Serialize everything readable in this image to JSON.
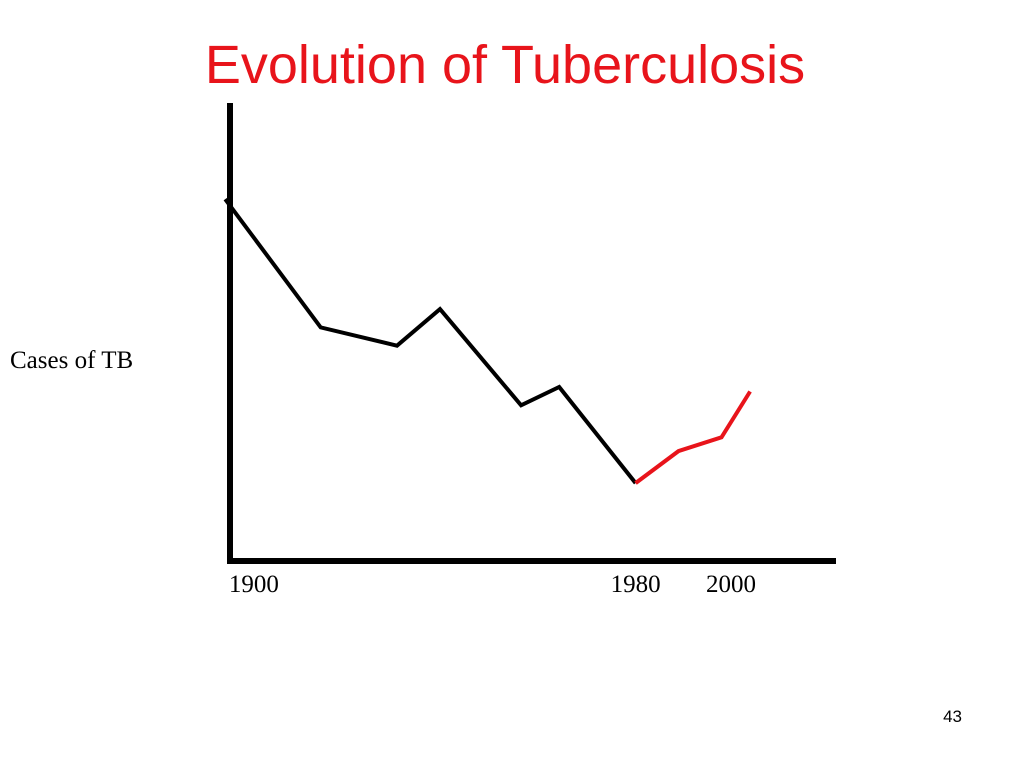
{
  "slide": {
    "title": "Evolution of Tuberculosis",
    "page_number": "43"
  },
  "colors": {
    "title": "#e8141b",
    "trend": "#000000",
    "recent": "#e8141b",
    "axis": "#000000"
  },
  "chart_data": {
    "type": "line",
    "title": "Evolution of Tuberculosis",
    "xlabel": "",
    "ylabel": "Cases of TB",
    "x_ticks": [
      1900,
      1980,
      2000
    ],
    "xlim": [
      1895,
      2022
    ],
    "ylim": [
      0,
      100
    ],
    "y_ticks_shown": false,
    "grid": false,
    "legend": "none",
    "series": [
      {
        "color": "#000000",
        "x": [
          1894,
          1914,
          1930,
          1939,
          1956,
          1964,
          1980
        ],
        "y": [
          79,
          51,
          47,
          55,
          34,
          38,
          17
        ]
      },
      {
        "color": "#e8141b",
        "x": [
          1980,
          1989,
          1998,
          2004
        ],
        "y": [
          17,
          24,
          27,
          37
        ]
      }
    ]
  }
}
